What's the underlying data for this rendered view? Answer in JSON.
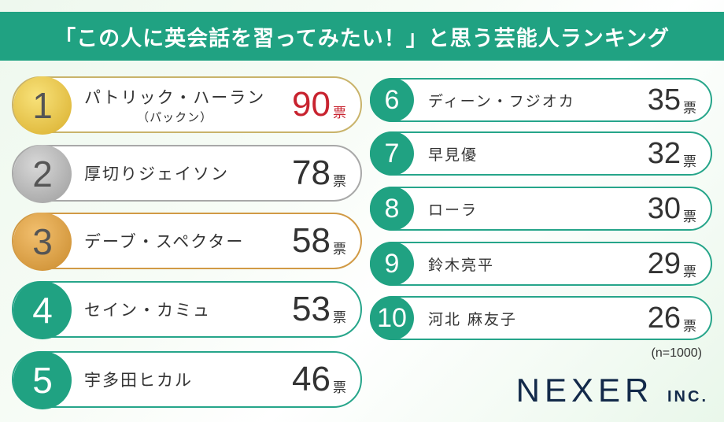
{
  "title": "「この人に英会話を習ってみたい！」と思う芸能人ランキング",
  "unit": "票",
  "ranking": [
    {
      "rank": "1",
      "name": "パトリック・ハーラン",
      "sub": "（パックン）",
      "votes": "90"
    },
    {
      "rank": "2",
      "name": "厚切りジェイソン",
      "votes": "78"
    },
    {
      "rank": "3",
      "name": "デーブ・スペクター",
      "votes": "58"
    },
    {
      "rank": "4",
      "name": "セイン・カミュ",
      "votes": "53"
    },
    {
      "rank": "5",
      "name": "宇多田ヒカル",
      "votes": "46"
    },
    {
      "rank": "6",
      "name": "ディーン・フジオカ",
      "votes": "35"
    },
    {
      "rank": "7",
      "name": "早見優",
      "votes": "32"
    },
    {
      "rank": "8",
      "name": "ローラ",
      "votes": "30"
    },
    {
      "rank": "9",
      "name": "鈴木亮平",
      "votes": "29"
    },
    {
      "rank": "10",
      "name": "河北 麻友子",
      "votes": "26"
    }
  ],
  "sample": "(n=1000)",
  "logo": {
    "main": "NEXER",
    "suffix": "INC."
  },
  "colors": {
    "accent": "#20a282",
    "first_votes": "#c8232f",
    "logo": "#132a4a"
  }
}
